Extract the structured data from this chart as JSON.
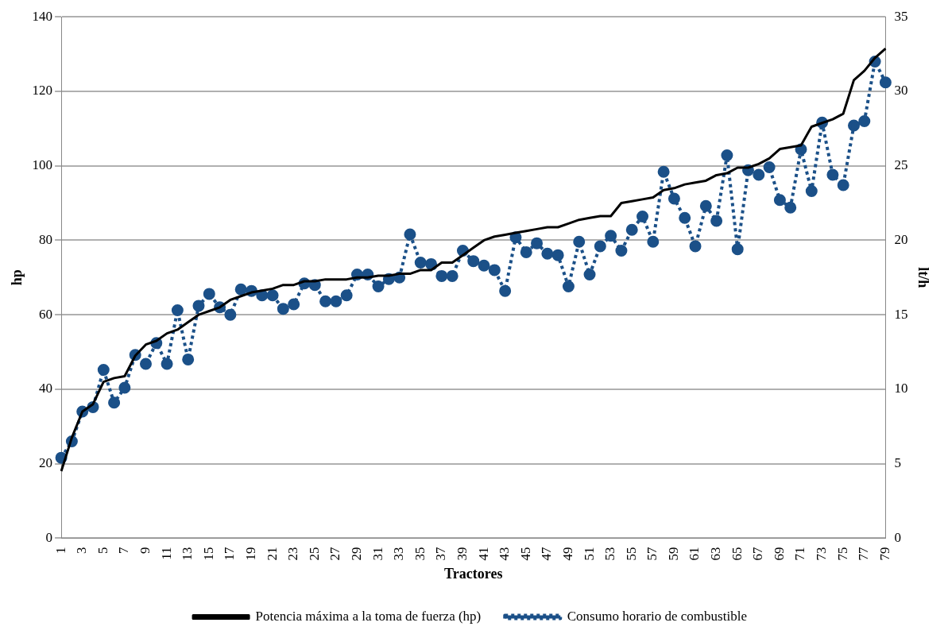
{
  "chart_data": {
    "type": "line",
    "xlabel": "Tractores",
    "ylabel": "hp",
    "y2label": "lt/h",
    "categories": [
      "1",
      null,
      "3",
      null,
      "5",
      null,
      "7",
      null,
      "9",
      null,
      "11",
      null,
      "13",
      null,
      "15",
      null,
      "17",
      null,
      "19",
      null,
      "21",
      null,
      "23",
      null,
      "25",
      null,
      "27",
      null,
      "29",
      null,
      "31",
      null,
      "33",
      null,
      "35",
      null,
      "37",
      null,
      "39",
      null,
      "41",
      null,
      "43",
      null,
      "45",
      null,
      "47",
      null,
      "49",
      null,
      "51",
      null,
      "53",
      null,
      "55",
      null,
      "57",
      null,
      "59",
      null,
      "61",
      null,
      "63",
      null,
      "65",
      null,
      "67",
      null,
      "69",
      null,
      "71",
      null,
      "73",
      null,
      "75",
      null,
      "77",
      null,
      "79"
    ],
    "series": [
      {
        "name": "Potencia máxima a la toma de fuerza (hp)",
        "color": "#000000",
        "marker": "none",
        "line_style": "solid",
        "values": [
          18,
          27,
          34,
          36,
          42,
          43,
          43.5,
          49,
          52,
          53,
          55,
          56,
          58,
          60,
          61,
          62,
          64,
          65,
          66,
          66.5,
          67,
          68,
          68,
          69,
          69,
          69.5,
          69.5,
          69.5,
          70,
          70,
          70.5,
          70.5,
          71,
          71,
          72,
          72,
          74,
          74,
          76,
          78,
          80,
          81,
          81.5,
          82,
          82.5,
          83,
          83.5,
          83.5,
          84.5,
          85.5,
          86,
          86.5,
          86.5,
          90,
          90.5,
          91,
          91.5,
          93.5,
          94,
          95,
          95.5,
          96,
          97.5,
          98,
          99.5,
          99.5,
          100.5,
          102,
          104.5,
          105,
          105.5,
          110.5,
          111.5,
          112.5,
          114,
          123,
          125.5,
          129,
          131.5
        ]
      },
      {
        "name": "Consumo horario de combustible",
        "color": "#1b5088",
        "marker": "circle",
        "line_style": "dotted",
        "axis": "y2",
        "values": [
          5.4,
          6.5,
          8.5,
          8.8,
          11.3,
          9.1,
          10.1,
          12.3,
          11.7,
          13.1,
          11.7,
          15.3,
          12,
          15.6,
          16.4,
          15.5,
          15,
          16.7,
          16.6,
          16.3,
          16.3,
          15.4,
          15.7,
          17.1,
          17,
          15.9,
          15.9,
          16.3,
          17.7,
          17.7,
          16.9,
          17.4,
          17.5,
          20.4,
          18.5,
          18.4,
          17.6,
          17.6,
          19.3,
          18.6,
          18.3,
          18,
          16.6,
          20.2,
          19.2,
          19.8,
          19.1,
          19,
          16.9,
          19.9,
          17.7,
          19.6,
          20.3,
          19.3,
          20.7,
          21.6,
          19.9,
          24.6,
          22.8,
          21.5,
          19.6,
          22.3,
          21.3,
          25.7,
          19.4,
          24.7,
          24.4,
          24.9,
          22.7,
          22.2,
          26.1,
          23.3,
          27.9,
          24.4,
          23.7,
          27.7,
          28,
          32,
          30.6
        ]
      }
    ],
    "ylim": [
      0,
      140
    ],
    "yticks": [
      0,
      20,
      40,
      60,
      80,
      100,
      120,
      140
    ],
    "y2lim": [
      0,
      35
    ],
    "y2ticks": [
      0,
      5,
      10,
      15,
      20,
      25,
      30,
      35
    ],
    "grid": "y",
    "legend": "bottom"
  }
}
